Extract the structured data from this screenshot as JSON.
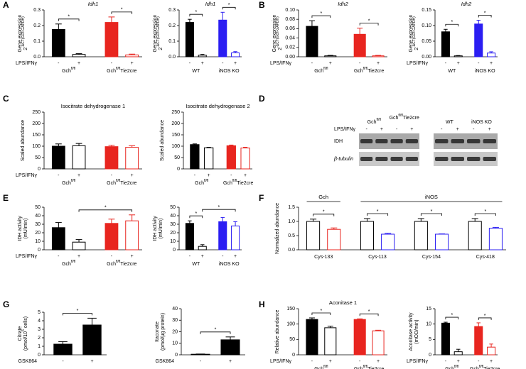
{
  "panels": [
    "A",
    "B",
    "C",
    "D",
    "E",
    "F",
    "G",
    "H"
  ],
  "blot": {
    "treatment": "LPS/IFNγ",
    "groups": [
      {
        "text": "Gch",
        "sup": "fl/fl"
      },
      {
        "text": "Gch",
        "sup": "fl/fl",
        "after": "Tie2cre"
      },
      {
        "text": "WT"
      },
      {
        "text": "iNOS KO"
      }
    ],
    "signs": [
      "-",
      "+",
      "-",
      "+",
      "-",
      "+",
      "-",
      "+"
    ],
    "rows": [
      "IDH",
      "β-tubulin"
    ]
  },
  "chart_data": [
    {
      "type": "bar",
      "title": "Idh1",
      "title_italic": true,
      "ylabel": [
        {
          "text": "Gene expression"
        },
        {
          "text": "2",
          "sup": "-ΔCT(GOI-GAPDH)"
        }
      ],
      "treatment": "LPS/IFNγ",
      "categories": [
        "-",
        "+",
        "-",
        "+"
      ],
      "groups": [
        {
          "text": "Gch",
          "sup": "fl/fl",
          "span": [
            0,
            1
          ]
        },
        {
          "text": "Gch",
          "sup": "fl/fl",
          "after": "Tie2cre",
          "span": [
            2,
            3
          ]
        }
      ],
      "values": [
        0.175,
        0.015,
        0.22,
        0.012
      ],
      "errors": [
        0.035,
        0.005,
        0.035,
        0.005
      ],
      "colors": [
        "#000000",
        "#000000",
        "#e8251f",
        "#e8251f"
      ],
      "filled": [
        true,
        false,
        true,
        false
      ],
      "ylim": [
        0,
        0.3
      ],
      "yticks": [
        {
          "value": 0,
          "label": "0.0"
        },
        0.1,
        0.2,
        0.3
      ],
      "annotations": [
        {
          "span": [
            0,
            1
          ],
          "label": "*"
        },
        {
          "span": [
            2,
            3
          ],
          "label": "*"
        }
      ]
    },
    {
      "type": "bar",
      "title": "Idh1",
      "title_italic": true,
      "ylabel": [
        {
          "text": "Gene expression"
        },
        {
          "text": "2",
          "sup": "-ΔCT(GOI-GAPDH)"
        }
      ],
      "categories": [
        "-",
        "+",
        "-",
        "+"
      ],
      "groups": [
        {
          "text": "WT",
          "span": [
            0,
            1
          ]
        },
        {
          "text": "iNOS KO",
          "span": [
            2,
            3
          ]
        }
      ],
      "values": [
        0.22,
        0.01,
        0.235,
        0.025
      ],
      "errors": [
        0.02,
        0.005,
        0.05,
        0.008
      ],
      "colors": [
        "#000000",
        "#000000",
        "#2b1ef2",
        "#2b1ef2"
      ],
      "filled": [
        true,
        false,
        true,
        false
      ],
      "ylim": [
        0,
        0.3
      ],
      "yticks": [
        {
          "value": 0,
          "label": "0.0"
        },
        0.1,
        0.2,
        0.3
      ],
      "annotations": [
        {
          "span": [
            0,
            1
          ],
          "label": "*"
        },
        {
          "span": [
            2,
            3
          ],
          "label": "*"
        }
      ]
    },
    {
      "type": "bar",
      "title": "Idh2",
      "title_italic": true,
      "ylabel": [
        {
          "text": "Gene expression"
        },
        {
          "text": "2",
          "sup": "-ΔCT(GOI-GAPDH)"
        }
      ],
      "treatment": "LPS/IFNγ",
      "categories": [
        "-",
        "+",
        "-",
        "+"
      ],
      "groups": [
        {
          "text": "Gch",
          "sup": "fl/fl",
          "span": [
            0,
            1
          ]
        },
        {
          "text": "Gch",
          "sup": "fl/fl",
          "after": "Tie2cre",
          "span": [
            2,
            3
          ]
        }
      ],
      "values": [
        0.065,
        0.002,
        0.048,
        0.002
      ],
      "errors": [
        0.012,
        0.001,
        0.013,
        0.001
      ],
      "colors": [
        "#000000",
        "#000000",
        "#e8251f",
        "#e8251f"
      ],
      "filled": [
        true,
        false,
        true,
        false
      ],
      "ylim": [
        0,
        0.1
      ],
      "yticks": [
        {
          "value": 0,
          "label": "0.00"
        },
        0.02,
        0.04,
        0.06,
        0.08,
        {
          "value": 0.1,
          "label": "0.10"
        }
      ],
      "annotations": [
        {
          "span": [
            0,
            1
          ],
          "label": "*"
        },
        {
          "span": [
            2,
            3
          ],
          "label": "*"
        }
      ]
    },
    {
      "type": "bar",
      "title": "Idh2",
      "title_italic": true,
      "ylabel": [
        {
          "text": "Gene expression"
        },
        {
          "text": "2",
          "sup": "-ΔCT(GOI-GAPDH)"
        }
      ],
      "treatment": "LPS/IFNγ",
      "categories": [
        "-",
        "+",
        "-",
        "+"
      ],
      "groups": [
        {
          "text": "WT",
          "span": [
            0,
            1
          ]
        },
        {
          "text": "iNOS KO",
          "span": [
            2,
            3
          ]
        }
      ],
      "values": [
        0.08,
        0.003,
        0.105,
        0.012
      ],
      "errors": [
        0.008,
        0.001,
        0.012,
        0.004
      ],
      "colors": [
        "#000000",
        "#000000",
        "#2b1ef2",
        "#2b1ef2"
      ],
      "filled": [
        true,
        false,
        true,
        false
      ],
      "ylim": [
        0,
        0.15
      ],
      "yticks": [
        {
          "value": 0,
          "label": "0.00"
        },
        0.05,
        {
          "value": 0.1,
          "label": "0.10"
        },
        0.15
      ],
      "annotations": [
        {
          "span": [
            0,
            1
          ],
          "label": "*"
        },
        {
          "span": [
            2,
            3
          ],
          "label": "*"
        }
      ]
    },
    {
      "type": "bar",
      "title": "Isocitrate dehydrogenase 1",
      "ylabel": [
        {
          "text": "Scaled abundance"
        }
      ],
      "treatment": "LPS/IFNγ",
      "categories": [
        "-",
        "+",
        "-",
        "+"
      ],
      "groups": [
        {
          "text": "Gch",
          "sup": "fl/fl",
          "span": [
            0,
            1
          ]
        },
        {
          "text": "Gch",
          "sup": "fl/fl",
          "after": "Tie2cre",
          "span": [
            2,
            3
          ]
        }
      ],
      "values": [
        100,
        102,
        98,
        95
      ],
      "errors": [
        10,
        10,
        6,
        7
      ],
      "colors": [
        "#000000",
        "#000000",
        "#e8251f",
        "#e8251f"
      ],
      "filled": [
        true,
        false,
        true,
        false
      ],
      "ylim": [
        0,
        250
      ],
      "yticks": [
        0,
        50,
        100,
        150,
        200,
        250
      ]
    },
    {
      "type": "bar",
      "title": "Isocitrate dehydrogenase 2",
      "ylabel": [
        {
          "text": "Scaled abundance"
        }
      ],
      "categories": [
        "-",
        "+",
        "-",
        "+"
      ],
      "groups": [
        {
          "text": "Gch",
          "sup": "fl/fl",
          "span": [
            0,
            1
          ]
        },
        {
          "text": "Gch",
          "sup": "fl/fl",
          "after": "Tie2cre",
          "span": [
            2,
            3
          ]
        }
      ],
      "values": [
        107,
        93,
        102,
        92
      ],
      "errors": [
        3,
        2,
        3,
        3
      ],
      "colors": [
        "#000000",
        "#000000",
        "#e8251f",
        "#e8251f"
      ],
      "filled": [
        true,
        false,
        true,
        false
      ],
      "ylim": [
        0,
        250
      ],
      "yticks": [
        0,
        50,
        100,
        150,
        200,
        250
      ]
    },
    {
      "type": "bar",
      "ylabel": [
        {
          "text": "IDH activity"
        },
        {
          "text": "(mU/min)"
        }
      ],
      "treatment": "LPS/IFNγ",
      "categories": [
        "-",
        "+",
        "-",
        "+"
      ],
      "groups": [
        {
          "text": "Gch",
          "sup": "fl/fl",
          "span": [
            0,
            1
          ]
        },
        {
          "text": "Gch",
          "sup": "fl/fl",
          "after": "Tie2cre",
          "span": [
            2,
            3
          ]
        }
      ],
      "values": [
        26,
        9,
        31,
        34
      ],
      "errors": [
        6,
        3,
        5,
        7
      ],
      "colors": [
        "#000000",
        "#000000",
        "#e8251f",
        "#e8251f"
      ],
      "filled": [
        true,
        false,
        true,
        false
      ],
      "ylim": [
        0,
        50
      ],
      "yticks": [
        0,
        10,
        20,
        30,
        40,
        50
      ],
      "annotations": [
        {
          "span": [
            1,
            3
          ],
          "label": "*"
        }
      ]
    },
    {
      "type": "bar",
      "ylabel": [
        {
          "text": "IDH activity"
        },
        {
          "text": "(mU/min)"
        }
      ],
      "categories": [
        "-",
        "+",
        "-",
        "+"
      ],
      "groups": [
        {
          "text": "WT",
          "span": [
            0,
            1
          ]
        },
        {
          "text": "iNOS KO",
          "span": [
            2,
            3
          ]
        }
      ],
      "values": [
        31,
        4,
        33,
        28
      ],
      "errors": [
        3,
        2,
        5,
        5
      ],
      "colors": [
        "#000000",
        "#000000",
        "#2b1ef2",
        "#2b1ef2"
      ],
      "filled": [
        true,
        false,
        true,
        false
      ],
      "ylim": [
        0,
        50
      ],
      "yticks": [
        0,
        10,
        20,
        30,
        40,
        50
      ],
      "annotations": [
        {
          "span": [
            0,
            1
          ],
          "label": "*"
        },
        {
          "span": [
            1,
            3
          ],
          "label": "*"
        }
      ]
    },
    {
      "type": "bar",
      "ylabel": [
        {
          "text": "Normalized abundance"
        }
      ],
      "categories": [
        null,
        null,
        null,
        null,
        null,
        null,
        null,
        null
      ],
      "headers": [
        {
          "text": "Gch",
          "span": [
            0,
            1
          ]
        },
        {
          "text": "iNOS",
          "span": [
            2,
            7
          ]
        }
      ],
      "groups": [
        {
          "text": "Cys-133",
          "span": [
            0,
            1
          ]
        },
        {
          "text": "Cys-113",
          "span": [
            2,
            3
          ]
        },
        {
          "text": "Cys-154",
          "span": [
            4,
            5
          ]
        },
        {
          "text": "Cys-418",
          "span": [
            6,
            7
          ]
        }
      ],
      "values": [
        1.0,
        0.72,
        1.0,
        0.55,
        1.0,
        0.55,
        1.0,
        0.76
      ],
      "errors": [
        0.08,
        0.05,
        0.1,
        0.03,
        0.1,
        0.01,
        0.1,
        0.03
      ],
      "colors": [
        "#000000",
        "#e8251f",
        "#000000",
        "#2b1ef2",
        "#000000",
        "#2b1ef2",
        "#000000",
        "#2b1ef2"
      ],
      "filled": [
        false,
        false,
        false,
        false,
        false,
        false,
        false,
        false
      ],
      "ylim": [
        0,
        1.5
      ],
      "yticks": [
        {
          "value": 0,
          "label": "0.0"
        },
        0.5,
        {
          "value": 1,
          "label": "1.0"
        },
        1.5
      ],
      "annotations": [
        {
          "span": [
            0,
            1
          ],
          "label": "*"
        },
        {
          "span": [
            2,
            3
          ],
          "label": "*"
        },
        {
          "span": [
            4,
            5
          ],
          "label": "*"
        },
        {
          "span": [
            6,
            7
          ],
          "label": "*"
        }
      ]
    },
    {
      "type": "bar",
      "ylabel": [
        {
          "text": "Citrate"
        },
        {
          "text": "(pmol/10",
          "sup": "6",
          "after": " cells)"
        }
      ],
      "treatment": "GSK864",
      "categories": [
        "-",
        "+"
      ],
      "values": [
        1.25,
        3.5
      ],
      "errors": [
        0.3,
        0.8
      ],
      "colors": [
        "#000000",
        "#000000"
      ],
      "filled": [
        true,
        true
      ],
      "ylim": [
        0,
        5
      ],
      "yticks": [
        0,
        1,
        2,
        3,
        4,
        5
      ],
      "annotations": [
        {
          "span": [
            0,
            1
          ],
          "label": "*"
        }
      ]
    },
    {
      "type": "bar",
      "ylabel": [
        {
          "text": "Itaconate"
        },
        {
          "text": "(pmol/μg protein)"
        }
      ],
      "treatment": "GSK864",
      "categories": [
        "-",
        "+"
      ],
      "values": [
        0.5,
        13
      ],
      "errors": [
        0.2,
        2.5
      ],
      "colors": [
        "#000000",
        "#000000"
      ],
      "filled": [
        true,
        true
      ],
      "ylim": [
        0,
        40
      ],
      "yticks": [
        0,
        10,
        20,
        30,
        40
      ],
      "annotations": [
        {
          "span": [
            0,
            1
          ],
          "label": "*"
        }
      ]
    },
    {
      "type": "bar",
      "title": "Aconitase 1",
      "ylabel": [
        {
          "text": "Relative abundance"
        }
      ],
      "treatment": "LPS/IFNγ",
      "categories": [
        "-",
        "+",
        "-",
        "+"
      ],
      "groups": [
        {
          "text": "Gch",
          "sup": "fl/fl",
          "span": [
            0,
            1
          ]
        },
        {
          "text": "Gch",
          "sup": "fl/fl",
          "after": "Tie2cre",
          "span": [
            2,
            3
          ]
        }
      ],
      "values": [
        115,
        88,
        115,
        78
      ],
      "errors": [
        5,
        5,
        2,
        2
      ],
      "colors": [
        "#000000",
        "#000000",
        "#e8251f",
        "#e8251f"
      ],
      "filled": [
        true,
        false,
        true,
        false
      ],
      "ylim": [
        0,
        150
      ],
      "yticks": [
        0,
        50,
        100,
        150
      ],
      "annotations": [
        {
          "span": [
            0,
            1
          ],
          "label": "*"
        },
        {
          "span": [
            2,
            3
          ],
          "label": "*"
        }
      ]
    },
    {
      "type": "bar",
      "ylabel": [
        {
          "text": "Aconitase activity"
        },
        {
          "text": "(mOD/min)"
        }
      ],
      "treatment": "LPS/IFNγ",
      "categories": [
        "-",
        "+",
        "-",
        "+"
      ],
      "groups": [
        {
          "text": "Gch",
          "sup": "fl/fl",
          "span": [
            0,
            1
          ]
        },
        {
          "text": "Gch",
          "sup": "fl/fl",
          "after": "Tie2cre",
          "span": [
            2,
            3
          ]
        }
      ],
      "values": [
        10.3,
        1,
        9.2,
        2.5
      ],
      "errors": [
        0.3,
        0.8,
        1.2,
        1
      ],
      "colors": [
        "#000000",
        "#000000",
        "#e8251f",
        "#e8251f"
      ],
      "filled": [
        true,
        false,
        true,
        false
      ],
      "ylim": [
        0,
        15
      ],
      "yticks": [
        0,
        5,
        10,
        15
      ],
      "annotations": [
        {
          "span": [
            0,
            1
          ],
          "label": "*"
        },
        {
          "span": [
            2,
            3
          ],
          "label": "*"
        }
      ]
    }
  ]
}
